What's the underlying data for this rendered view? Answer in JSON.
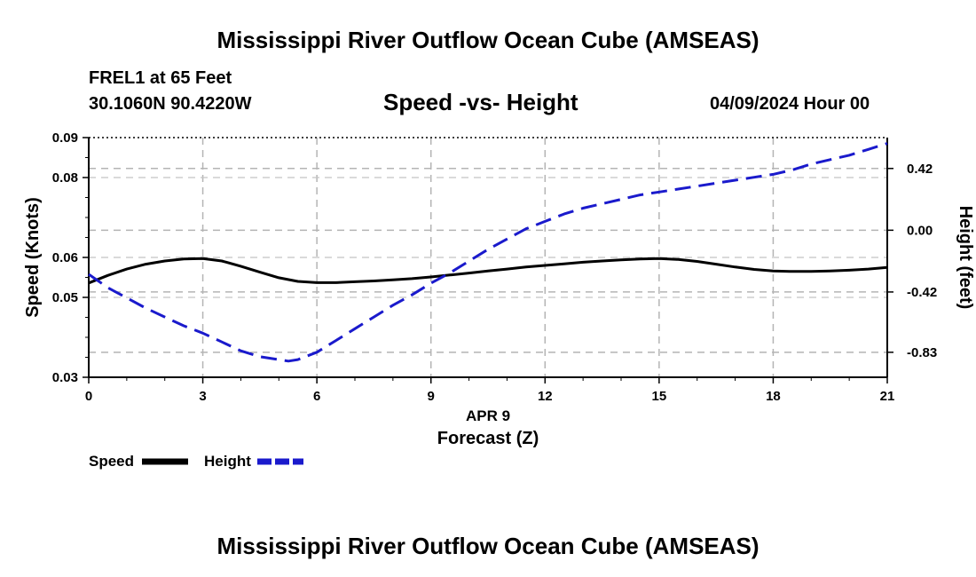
{
  "header": {
    "title": "Mississippi River Outflow Ocean Cube (AMSEAS)",
    "station": "FREL1 at 65 Feet",
    "coords": "30.1060N  90.4220W",
    "subtitle": "Speed -vs- Height",
    "datetime": "04/09/2024 Hour 00"
  },
  "footer": {
    "title": "Mississippi River Outflow Ocean Cube (AMSEAS)"
  },
  "chart_data": {
    "type": "line",
    "x_ticks": [
      "0",
      "3",
      "6",
      "9",
      "12",
      "15",
      "18",
      "21"
    ],
    "x_range": [
      0,
      21
    ],
    "x_date_label": "APR 9",
    "xlabel": "Forecast (Z)",
    "ylabel_left": "Speed (Knots)",
    "ylabel_right": "Height (feet)",
    "y_left_range": [
      0.03,
      0.09
    ],
    "y_left_ticks": [
      "0.03",
      "0.05",
      "0.06",
      "0.08",
      "0.09"
    ],
    "y_right_range": [
      -1.0,
      0.63
    ],
    "y_right_ticks": [
      "0.42",
      "0.00",
      "-0.42",
      "-0.83"
    ],
    "y_right_tick_values": [
      0.42,
      0.0,
      -0.42,
      -0.83
    ],
    "series": [
      {
        "name": "Speed",
        "axis": "left",
        "color": "#000000",
        "x": [
          0,
          0.5,
          1,
          1.5,
          2,
          2.5,
          3,
          3.5,
          4,
          4.5,
          5,
          5.5,
          6,
          6.5,
          7,
          7.5,
          8,
          8.5,
          9,
          9.5,
          10,
          10.5,
          11,
          11.5,
          12,
          12.5,
          13,
          13.5,
          14,
          14.5,
          15,
          15.5,
          16,
          16.5,
          17,
          17.5,
          18,
          18.5,
          19,
          19.5,
          20,
          20.5,
          21
        ],
        "values": [
          0.0536,
          0.0555,
          0.0571,
          0.0583,
          0.0591,
          0.0596,
          0.0597,
          0.0591,
          0.0578,
          0.0563,
          0.0549,
          0.054,
          0.0537,
          0.0537,
          0.0539,
          0.0541,
          0.0544,
          0.0547,
          0.0551,
          0.0556,
          0.0561,
          0.0566,
          0.0571,
          0.0576,
          0.058,
          0.0584,
          0.0588,
          0.0591,
          0.0594,
          0.0596,
          0.0597,
          0.0595,
          0.059,
          0.0583,
          0.0576,
          0.057,
          0.0566,
          0.0565,
          0.0565,
          0.0566,
          0.0568,
          0.0571,
          0.0575
        ]
      },
      {
        "name": "Height",
        "axis": "right",
        "color": "#1a1acc",
        "x": [
          0,
          0.5,
          1,
          1.5,
          2,
          2.5,
          3,
          3.5,
          4,
          4.5,
          5,
          5.25,
          5.5,
          6,
          6.5,
          7,
          7.5,
          8,
          8.5,
          9,
          9.5,
          10,
          10.5,
          11,
          11.5,
          12,
          12.5,
          13,
          13.5,
          14,
          14.5,
          15,
          15.5,
          16,
          16.5,
          17,
          17.5,
          18,
          18.5,
          19,
          19.5,
          20,
          20.5,
          21
        ],
        "values": [
          -0.3,
          -0.39,
          -0.46,
          -0.53,
          -0.59,
          -0.65,
          -0.7,
          -0.76,
          -0.82,
          -0.86,
          -0.88,
          -0.89,
          -0.88,
          -0.83,
          -0.75,
          -0.67,
          -0.59,
          -0.51,
          -0.44,
          -0.36,
          -0.29,
          -0.21,
          -0.13,
          -0.06,
          0.01,
          0.06,
          0.11,
          0.15,
          0.18,
          0.21,
          0.24,
          0.26,
          0.28,
          0.3,
          0.32,
          0.34,
          0.36,
          0.38,
          0.41,
          0.45,
          0.48,
          0.51,
          0.55,
          0.59
        ]
      }
    ],
    "legend": [
      {
        "label": "Speed",
        "color": "#000000",
        "dashed": false
      },
      {
        "label": "Height",
        "color": "#1a1acc",
        "dashed": true
      }
    ]
  }
}
